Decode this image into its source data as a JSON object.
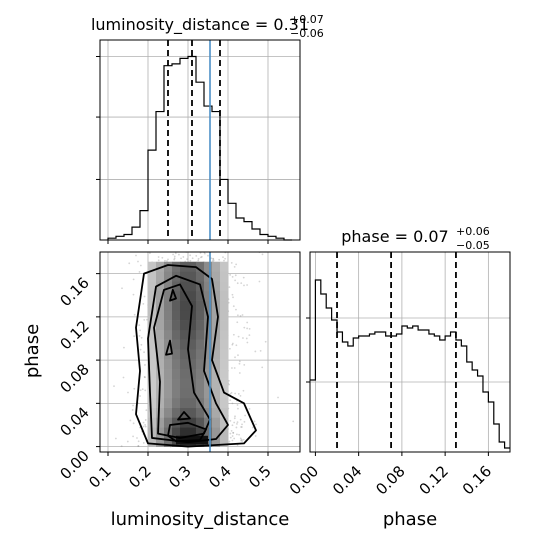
{
  "chart_data": [
    {
      "type": "histogram",
      "panel": "top-left",
      "title": {
        "param": "luminosity_distance",
        "median": "0.31",
        "plus": "+0.07",
        "minus": "−0.06"
      },
      "bins_edges": [
        0.1,
        0.12,
        0.14,
        0.16,
        0.18,
        0.2,
        0.22,
        0.24,
        0.26,
        0.28,
        0.3,
        0.32,
        0.34,
        0.36,
        0.38,
        0.4,
        0.42,
        0.44,
        0.46,
        0.48,
        0.5,
        0.52,
        0.54,
        0.56
      ],
      "counts": [
        0.01,
        0.02,
        0.03,
        0.07,
        0.16,
        0.49,
        0.7,
        0.95,
        0.96,
        0.99,
        1.0,
        0.86,
        0.73,
        0.7,
        0.33,
        0.2,
        0.12,
        0.1,
        0.06,
        0.03,
        0.02,
        0.01,
        0.0
      ],
      "quantiles": [
        0.25,
        0.31,
        0.38
      ],
      "truth": 0.355,
      "xlim": [
        0.08,
        0.58
      ],
      "ylim": [
        0,
        1.09
      ],
      "grid": true
    },
    {
      "type": "heatmap",
      "panel": "bottom-left",
      "xlabel": "luminosity_distance",
      "ylabel": "phase",
      "xticks": [
        "0.1",
        "0.2",
        "0.3",
        "0.4",
        "0.5"
      ],
      "yticks": [
        "0.00",
        "0.04",
        "0.08",
        "0.12",
        "0.16"
      ],
      "xlim": [
        0.08,
        0.58
      ],
      "ylim": [
        -0.005,
        0.18
      ],
      "truth": 0.355,
      "grid": true
    },
    {
      "type": "histogram",
      "panel": "bottom-right",
      "title": {
        "param": "phase",
        "median": "0.07",
        "plus": "+0.06",
        "minus": "−0.05"
      },
      "xlabel": "phase",
      "xticks": [
        "0.00",
        "0.04",
        "0.08",
        "0.12",
        "0.16"
      ],
      "bins_edges": [
        -0.005,
        0.0,
        0.005,
        0.01,
        0.015,
        0.02,
        0.025,
        0.03,
        0.035,
        0.04,
        0.045,
        0.05,
        0.055,
        0.06,
        0.065,
        0.07,
        0.075,
        0.08,
        0.085,
        0.09,
        0.095,
        0.1,
        0.105,
        0.11,
        0.115,
        0.12,
        0.125,
        0.13,
        0.135,
        0.14,
        0.145,
        0.15,
        0.155,
        0.16,
        0.165,
        0.17,
        0.175,
        0.18
      ],
      "counts": [
        0.36,
        0.86,
        0.79,
        0.72,
        0.66,
        0.6,
        0.55,
        0.53,
        0.57,
        0.58,
        0.58,
        0.59,
        0.6,
        0.6,
        0.58,
        0.58,
        0.59,
        0.63,
        0.62,
        0.63,
        0.61,
        0.61,
        0.59,
        0.58,
        0.56,
        0.58,
        0.6,
        0.56,
        0.53,
        0.45,
        0.41,
        0.38,
        0.3,
        0.25,
        0.14,
        0.05,
        0.02
      ],
      "quantiles": [
        0.02,
        0.07,
        0.13
      ],
      "xlim": [
        -0.005,
        0.18
      ],
      "ylim": [
        0,
        1.0
      ],
      "grid": true
    }
  ]
}
